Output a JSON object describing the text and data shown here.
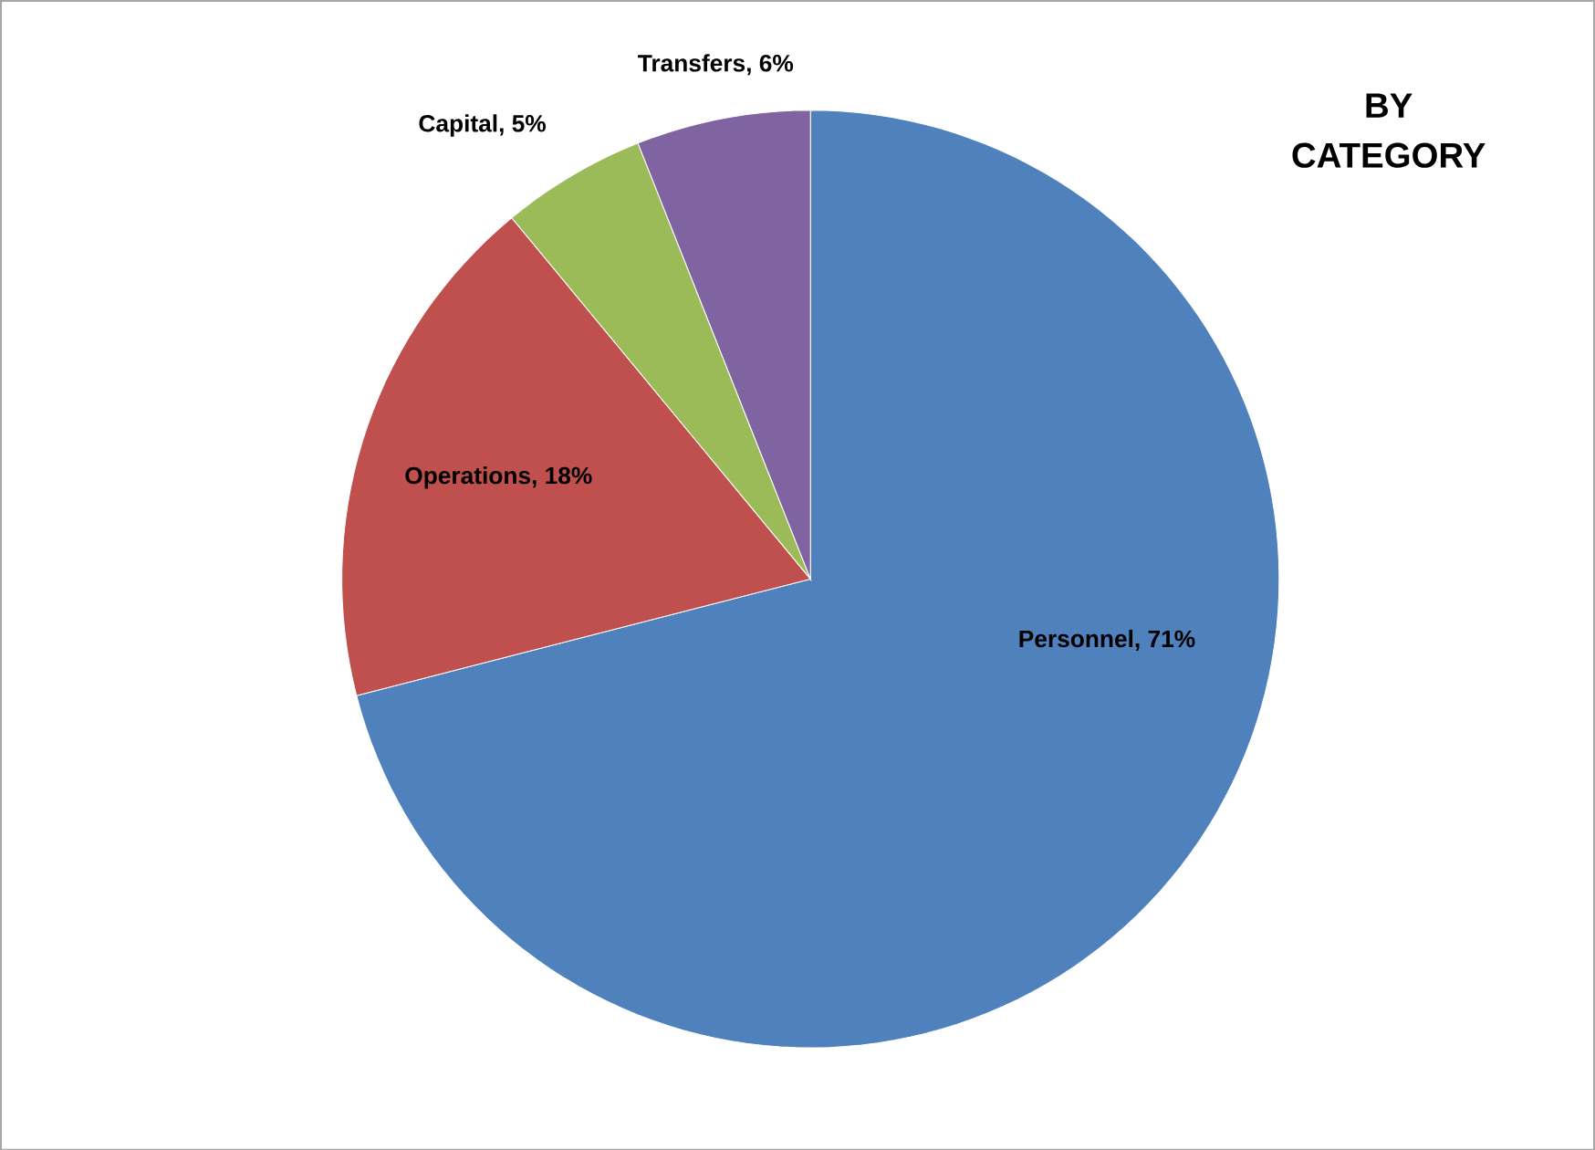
{
  "chart_data": {
    "type": "pie",
    "title": "BY CATEGORY",
    "categories": [
      "Personnel",
      "Operations",
      "Capital",
      "Transfers"
    ],
    "values": [
      71,
      18,
      5,
      6
    ],
    "value_labels": [
      ", 71%",
      ", 18%",
      ", 5%",
      ", 6%"
    ],
    "colors": [
      "#4f81bd",
      "#c0504d",
      "#9bbb59",
      "#8064a2"
    ],
    "legend": false
  }
}
